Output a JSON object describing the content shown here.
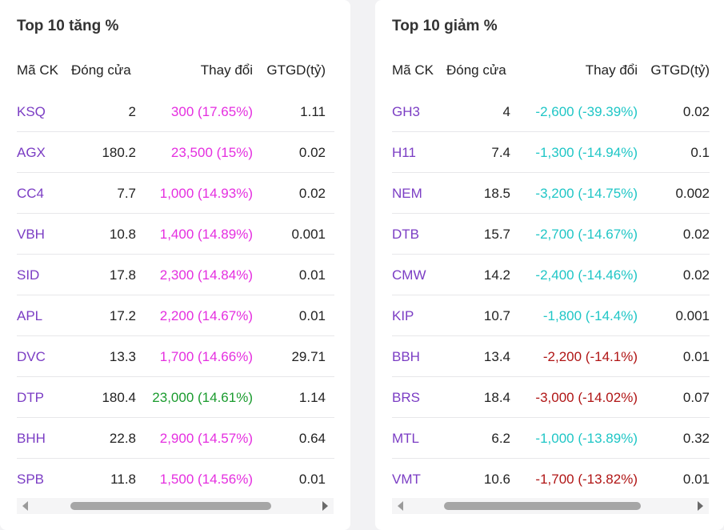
{
  "colors": {
    "ceiling": "#e52fe0",
    "up": "#1a9b2e",
    "floor": "#1fc6c6",
    "down": "#b01515",
    "symbol": "#7b3dc4"
  },
  "gainers": {
    "title": "Top 10 tăng %",
    "headers": {
      "symbol": "Mã CK",
      "close": "Đóng cửa",
      "change": "Thay đổi",
      "value": "GTGD(tỷ)"
    },
    "rows": [
      {
        "symbol": "KSQ",
        "close": "2",
        "change": "300 (17.65%)",
        "value": "1.11",
        "color": "ceiling"
      },
      {
        "symbol": "AGX",
        "close": "180.2",
        "change": "23,500 (15%)",
        "value": "0.02",
        "color": "ceiling"
      },
      {
        "symbol": "CC4",
        "close": "7.7",
        "change": "1,000 (14.93%)",
        "value": "0.02",
        "color": "ceiling"
      },
      {
        "symbol": "VBH",
        "close": "10.8",
        "change": "1,400 (14.89%)",
        "value": "0.001",
        "color": "ceiling"
      },
      {
        "symbol": "SID",
        "close": "17.8",
        "change": "2,300 (14.84%)",
        "value": "0.01",
        "color": "ceiling"
      },
      {
        "symbol": "APL",
        "close": "17.2",
        "change": "2,200 (14.67%)",
        "value": "0.01",
        "color": "ceiling"
      },
      {
        "symbol": "DVC",
        "close": "13.3",
        "change": "1,700 (14.66%)",
        "value": "29.71",
        "color": "ceiling"
      },
      {
        "symbol": "DTP",
        "close": "180.4",
        "change": "23,000 (14.61%)",
        "value": "1.14",
        "color": "up"
      },
      {
        "symbol": "BHH",
        "close": "22.8",
        "change": "2,900 (14.57%)",
        "value": "0.64",
        "color": "ceiling"
      },
      {
        "symbol": "SPB",
        "close": "11.8",
        "change": "1,500 (14.56%)",
        "value": "0.01",
        "color": "ceiling"
      }
    ]
  },
  "losers": {
    "title": "Top 10 giảm %",
    "headers": {
      "symbol": "Mã CK",
      "close": "Đóng cửa",
      "change": "Thay đổi",
      "value": "GTGD(tỷ)"
    },
    "rows": [
      {
        "symbol": "GH3",
        "close": "4",
        "change": "-2,600 (-39.39%)",
        "value": "0.02",
        "color": "floor"
      },
      {
        "symbol": "H11",
        "close": "7.4",
        "change": "-1,300 (-14.94%)",
        "value": "0.1",
        "color": "floor"
      },
      {
        "symbol": "NEM",
        "close": "18.5",
        "change": "-3,200 (-14.75%)",
        "value": "0.002",
        "color": "floor"
      },
      {
        "symbol": "DTB",
        "close": "15.7",
        "change": "-2,700 (-14.67%)",
        "value": "0.02",
        "color": "floor"
      },
      {
        "symbol": "CMW",
        "close": "14.2",
        "change": "-2,400 (-14.46%)",
        "value": "0.02",
        "color": "floor"
      },
      {
        "symbol": "KIP",
        "close": "10.7",
        "change": "-1,800 (-14.4%)",
        "value": "0.001",
        "color": "floor"
      },
      {
        "symbol": "BBH",
        "close": "13.4",
        "change": "-2,200 (-14.1%)",
        "value": "0.01",
        "color": "down"
      },
      {
        "symbol": "BRS",
        "close": "18.4",
        "change": "-3,000 (-14.02%)",
        "value": "0.07",
        "color": "down"
      },
      {
        "symbol": "MTL",
        "close": "6.2",
        "change": "-1,000 (-13.89%)",
        "value": "0.32",
        "color": "floor"
      },
      {
        "symbol": "VMT",
        "close": "10.6",
        "change": "-1,700 (-13.82%)",
        "value": "0.01",
        "color": "down"
      }
    ]
  }
}
